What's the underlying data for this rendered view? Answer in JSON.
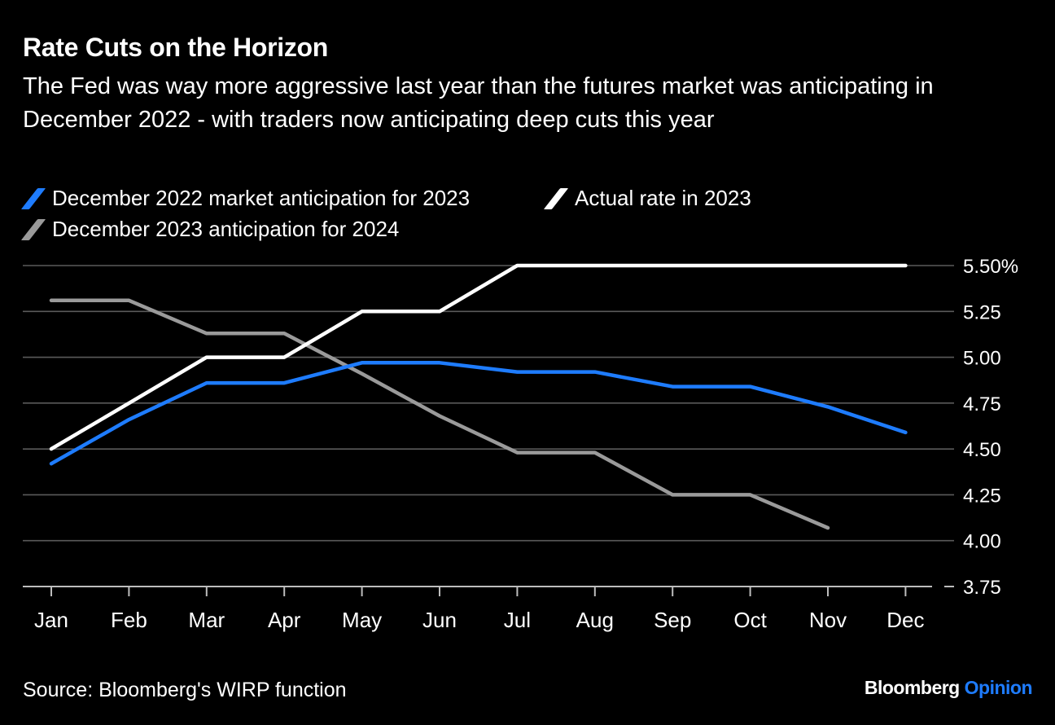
{
  "header": {
    "title": "Rate Cuts on the Horizon",
    "subtitle": "The Fed was way more aggressive last year than the futures market was anticipating in December 2022 - with traders now anticipating deep cuts this year"
  },
  "footer": {
    "source": "Source: Bloomberg's WIRP function",
    "brand_main": "Bloomberg",
    "brand_accent": "Opinion"
  },
  "chart_data": {
    "type": "line",
    "title": "Rate Cuts on the Horizon",
    "categories": [
      "Jan",
      "Feb",
      "Mar",
      "Apr",
      "May",
      "Jun",
      "Jul",
      "Aug",
      "Sep",
      "Oct",
      "Nov",
      "Dec"
    ],
    "ylim": [
      3.75,
      5.5
    ],
    "yticks": [
      "5.50%",
      "5.25",
      "5.00",
      "4.75",
      "4.50",
      "4.25",
      "4.00",
      "3.75"
    ],
    "ytick_values": [
      5.5,
      5.25,
      5.0,
      4.75,
      4.5,
      4.25,
      4.0,
      3.75
    ],
    "y_axis_position": "right",
    "grid": true,
    "legend_position": "top",
    "series": [
      {
        "name": "December 2022 market anticipation for 2023",
        "color": "#1e7cff",
        "values": [
          4.42,
          4.66,
          4.86,
          4.86,
          4.97,
          4.97,
          4.92,
          4.92,
          4.84,
          4.84,
          4.73,
          4.59
        ]
      },
      {
        "name": "Actual rate in 2023",
        "color": "#ffffff",
        "values": [
          4.5,
          4.75,
          5.0,
          5.0,
          5.25,
          5.25,
          5.5,
          5.5,
          5.5,
          5.5,
          5.5,
          5.5
        ]
      },
      {
        "name": "December 2023 anticipation for 2024",
        "color": "#9a9a9a",
        "values": [
          5.31,
          5.31,
          5.13,
          5.13,
          4.91,
          4.68,
          4.48,
          4.48,
          4.25,
          4.25,
          4.07,
          null
        ]
      }
    ]
  }
}
